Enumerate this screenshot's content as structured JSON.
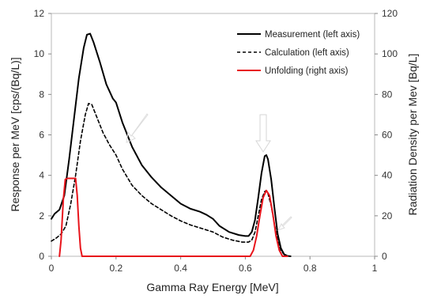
{
  "chart_data": {
    "type": "line",
    "xlabel": "Gamma Ray Energy  [MeV]",
    "ylabel_left": "Response per MeV [cps/(Bq/L)]",
    "ylabel_right": "Radiation Density per Mev [Bq/L]",
    "xlim": [
      0,
      1
    ],
    "ylim_left": [
      0,
      12
    ],
    "ylim_right": [
      0,
      120
    ],
    "x_ticks": [
      0,
      0.2,
      0.4,
      0.6,
      0.8,
      1
    ],
    "x_tick_labels": [
      "0",
      "0.2",
      "0.4",
      "0.6",
      "0.8",
      "1"
    ],
    "y_left_ticks": [
      0,
      2,
      4,
      6,
      8,
      10,
      12
    ],
    "y_left_tick_labels": [
      "0",
      "2",
      "4",
      "6",
      "8",
      "10",
      "12"
    ],
    "y_right_ticks": [
      0,
      20,
      40,
      60,
      80,
      100,
      120
    ],
    "y_right_tick_labels": [
      "0",
      "20",
      "40",
      "60",
      "80",
      "100",
      "120"
    ],
    "grid": false,
    "legend_position": "top-right",
    "series": [
      {
        "name": "Measurement (left axis)",
        "axis": "left",
        "color": "#000000",
        "dash": "solid",
        "points": [
          [
            0.0,
            1.85
          ],
          [
            0.01,
            2.1
          ],
          [
            0.025,
            2.3
          ],
          [
            0.04,
            3.0
          ],
          [
            0.055,
            4.8
          ],
          [
            0.07,
            6.8
          ],
          [
            0.085,
            8.8
          ],
          [
            0.1,
            10.3
          ],
          [
            0.11,
            10.95
          ],
          [
            0.12,
            11.0
          ],
          [
            0.13,
            10.6
          ],
          [
            0.15,
            9.6
          ],
          [
            0.17,
            8.5
          ],
          [
            0.19,
            7.8
          ],
          [
            0.2,
            7.6
          ],
          [
            0.22,
            6.6
          ],
          [
            0.25,
            5.4
          ],
          [
            0.28,
            4.5
          ],
          [
            0.31,
            3.9
          ],
          [
            0.34,
            3.4
          ],
          [
            0.37,
            3.0
          ],
          [
            0.4,
            2.6
          ],
          [
            0.43,
            2.35
          ],
          [
            0.46,
            2.2
          ],
          [
            0.48,
            2.05
          ],
          [
            0.5,
            1.85
          ],
          [
            0.52,
            1.5
          ],
          [
            0.55,
            1.2
          ],
          [
            0.58,
            1.05
          ],
          [
            0.6,
            1.0
          ],
          [
            0.61,
            1.0
          ],
          [
            0.62,
            1.2
          ],
          [
            0.63,
            1.8
          ],
          [
            0.64,
            2.9
          ],
          [
            0.65,
            4.1
          ],
          [
            0.66,
            4.95
          ],
          [
            0.665,
            5.0
          ],
          [
            0.67,
            4.8
          ],
          [
            0.68,
            3.8
          ],
          [
            0.69,
            2.4
          ],
          [
            0.7,
            1.1
          ],
          [
            0.71,
            0.4
          ],
          [
            0.72,
            0.1
          ],
          [
            0.73,
            0.02
          ],
          [
            0.74,
            0.0
          ]
        ]
      },
      {
        "name": "Calculation (left axis)",
        "axis": "left",
        "color": "#000000",
        "dash": "dashed",
        "points": [
          [
            0.0,
            0.75
          ],
          [
            0.015,
            0.9
          ],
          [
            0.03,
            1.1
          ],
          [
            0.045,
            1.5
          ],
          [
            0.06,
            2.6
          ],
          [
            0.075,
            4.0
          ],
          [
            0.09,
            5.7
          ],
          [
            0.105,
            7.0
          ],
          [
            0.115,
            7.55
          ],
          [
            0.125,
            7.5
          ],
          [
            0.14,
            6.9
          ],
          [
            0.16,
            6.1
          ],
          [
            0.18,
            5.5
          ],
          [
            0.2,
            5.0
          ],
          [
            0.22,
            4.3
          ],
          [
            0.25,
            3.5
          ],
          [
            0.28,
            3.0
          ],
          [
            0.31,
            2.6
          ],
          [
            0.34,
            2.3
          ],
          [
            0.37,
            2.0
          ],
          [
            0.4,
            1.75
          ],
          [
            0.43,
            1.55
          ],
          [
            0.46,
            1.4
          ],
          [
            0.5,
            1.2
          ],
          [
            0.53,
            0.95
          ],
          [
            0.56,
            0.8
          ],
          [
            0.59,
            0.7
          ],
          [
            0.61,
            0.7
          ],
          [
            0.62,
            0.8
          ],
          [
            0.63,
            1.2
          ],
          [
            0.64,
            2.0
          ],
          [
            0.65,
            2.8
          ],
          [
            0.66,
            3.2
          ],
          [
            0.665,
            3.25
          ],
          [
            0.67,
            3.1
          ],
          [
            0.68,
            2.5
          ],
          [
            0.69,
            1.6
          ],
          [
            0.7,
            0.8
          ],
          [
            0.71,
            0.3
          ],
          [
            0.72,
            0.08
          ],
          [
            0.73,
            0.0
          ]
        ]
      },
      {
        "name": "Unfolding (right axis)",
        "axis": "right",
        "color": "#e8141b",
        "dash": "solid",
        "points": [
          [
            0.025,
            0
          ],
          [
            0.03,
            8
          ],
          [
            0.037,
            28
          ],
          [
            0.043,
            38
          ],
          [
            0.05,
            38.5
          ],
          [
            0.065,
            38.5
          ],
          [
            0.075,
            38.5
          ],
          [
            0.08,
            30
          ],
          [
            0.085,
            15
          ],
          [
            0.09,
            4
          ],
          [
            0.095,
            0
          ],
          [
            0.12,
            0
          ],
          [
            0.3,
            0
          ],
          [
            0.5,
            0
          ],
          [
            0.6,
            0
          ],
          [
            0.615,
            0
          ],
          [
            0.625,
            3
          ],
          [
            0.635,
            10
          ],
          [
            0.645,
            20
          ],
          [
            0.655,
            29
          ],
          [
            0.665,
            32.5
          ],
          [
            0.675,
            30
          ],
          [
            0.685,
            21
          ],
          [
            0.695,
            10
          ],
          [
            0.705,
            3
          ],
          [
            0.715,
            0
          ],
          [
            0.73,
            0
          ]
        ]
      }
    ]
  }
}
